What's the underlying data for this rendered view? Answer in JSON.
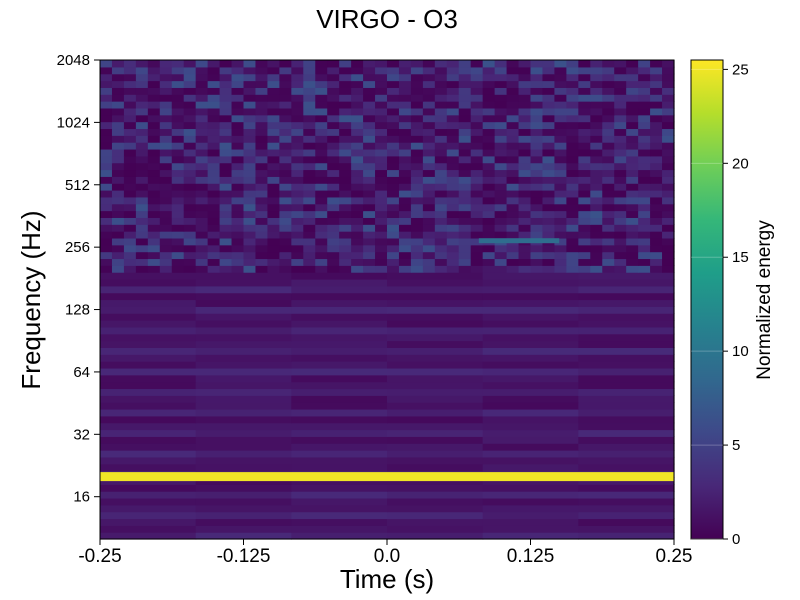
{
  "chart_data": {
    "type": "heatmap",
    "title": "VIRGO - O3",
    "xlabel": "Time (s)",
    "ylabel": "Frequency (Hz)",
    "x_ticks": [
      "-0.25",
      "-0.125",
      "0.0",
      "0.125",
      "0.25"
    ],
    "x_tick_values": [
      -0.25,
      -0.125,
      0.0,
      0.125,
      0.25
    ],
    "xlim": [
      -0.25,
      0.25
    ],
    "y_scale": "log2",
    "y_ticks": [
      "16",
      "32",
      "64",
      "128",
      "256",
      "512",
      "1024",
      "2048"
    ],
    "y_tick_values": [
      16,
      32,
      64,
      128,
      256,
      512,
      1024,
      2048
    ],
    "ylim": [
      10,
      2048
    ],
    "colorbar": {
      "label": "Normalized energy",
      "ticks": [
        "0",
        "5",
        "10",
        "15",
        "20",
        "25"
      ],
      "tick_values": [
        0,
        5,
        10,
        15,
        20,
        25
      ],
      "range": [
        0,
        25.5
      ],
      "colormap": [
        "#440154",
        "#482878",
        "#3e4989",
        "#31688e",
        "#26828e",
        "#1f9e89",
        "#35b779",
        "#6ece58",
        "#b5de2b",
        "#fde725"
      ]
    },
    "features": [
      {
        "label": "line at ~20 Hz",
        "freq": 20,
        "t_start": -0.25,
        "t_end": 0.25,
        "energy": 25
      },
      {
        "label": "blip near 280 Hz",
        "freq": 275,
        "t_start": 0.08,
        "t_end": 0.15,
        "energy": 9
      }
    ],
    "grid": false
  },
  "colors": {
    "background": "#440154",
    "text": "#000000"
  }
}
